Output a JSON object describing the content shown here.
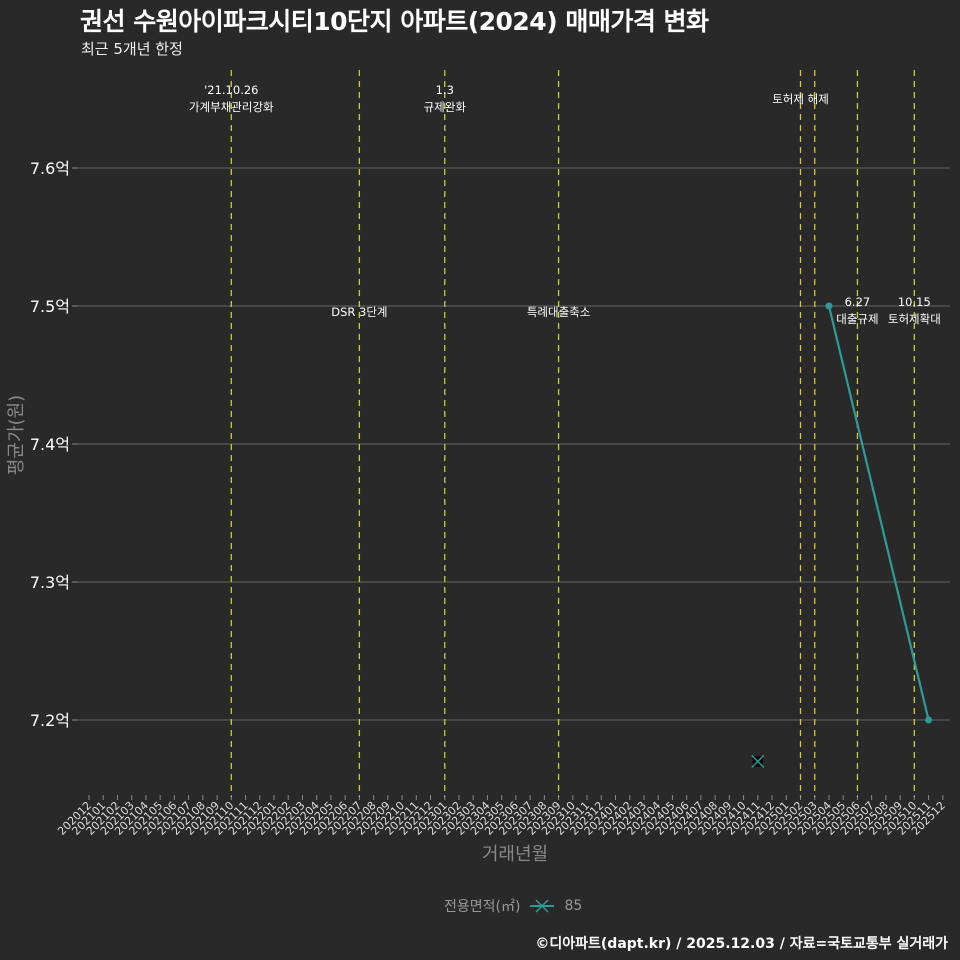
{
  "header": {
    "title": "권선 수원아이파크시티10단지 아파트(2024) 매매가격 변화",
    "subtitle": "최근 5개년 한정"
  },
  "caption": "©디아파트(dapt.kr) / 2025.12.03 / 자료=국토교통부 실거래가",
  "legend": {
    "title": "전용면적(㎡)",
    "items": [
      {
        "label": "85",
        "color": "#2e9b98"
      }
    ]
  },
  "colors": {
    "background": "#2a292a",
    "grid": "#5a5a5a",
    "line": "#2e9b98",
    "event_line": "#cccc33"
  },
  "chart_data": {
    "type": "line",
    "title": "권선 수원아이파크시티10단지 아파트(2024) 매매가격 변화",
    "subtitle": "최근 5개년 한정",
    "xlabel": "거래년월",
    "ylabel": "평균가(원)",
    "x_categories": [
      "202012",
      "202101",
      "202102",
      "202103",
      "202104",
      "202105",
      "202106",
      "202107",
      "202108",
      "202109",
      "202110",
      "202111",
      "202112",
      "202201",
      "202202",
      "202203",
      "202204",
      "202205",
      "202206",
      "202207",
      "202208",
      "202209",
      "202210",
      "202211",
      "202212",
      "202301",
      "202302",
      "202303",
      "202304",
      "202305",
      "202306",
      "202307",
      "202308",
      "202309",
      "202310",
      "202311",
      "202312",
      "202401",
      "202402",
      "202403",
      "202404",
      "202405",
      "202406",
      "202407",
      "202408",
      "202409",
      "202410",
      "202411",
      "202412",
      "202501",
      "202502",
      "202503",
      "202504",
      "202505",
      "202506",
      "202507",
      "202508",
      "202509",
      "202510",
      "202511",
      "202512"
    ],
    "y_ticks": [
      {
        "value": 7.2,
        "label": "7.2억"
      },
      {
        "value": 7.3,
        "label": "7.3억"
      },
      {
        "value": 7.4,
        "label": "7.4억"
      },
      {
        "value": 7.5,
        "label": "7.5억"
      },
      {
        "value": 7.6,
        "label": "7.6억"
      }
    ],
    "ylim": [
      7.15,
      7.65
    ],
    "grid": true,
    "legend_position": "bottom",
    "series": [
      {
        "name": "85",
        "marker": "circle",
        "points": [
          {
            "x": "202504",
            "y": 7.5
          },
          {
            "x": "202511",
            "y": 7.2
          }
        ]
      }
    ],
    "extra_markers": [
      {
        "x": "202411",
        "y": 7.17,
        "marker": "x",
        "series": "85"
      }
    ],
    "events": [
      {
        "x": "202110",
        "label_lines": [
          "'21.10.26",
          "가계부채관리강화"
        ],
        "label_y": "top"
      },
      {
        "x": "202207",
        "label_lines": [
          "DSR 3단계"
        ],
        "label_y": "mid"
      },
      {
        "x": "202301",
        "label_lines": [
          "1.3",
          "규제완화"
        ],
        "label_y": "top"
      },
      {
        "x": "202309",
        "label_lines": [
          "특례대출축소"
        ],
        "label_y": "mid"
      },
      {
        "x": "202502",
        "label_lines": [
          "토허제 해제"
        ],
        "label_y": "top2"
      },
      {
        "x": "202503",
        "label_lines": [],
        "label_y": "none"
      },
      {
        "x": "202506",
        "label_lines": [
          "6.27",
          "대출규제"
        ],
        "label_y": "mid2"
      },
      {
        "x": "202510",
        "label_lines": [
          "10.15",
          "토허제확대"
        ],
        "label_y": "mid2"
      }
    ]
  }
}
